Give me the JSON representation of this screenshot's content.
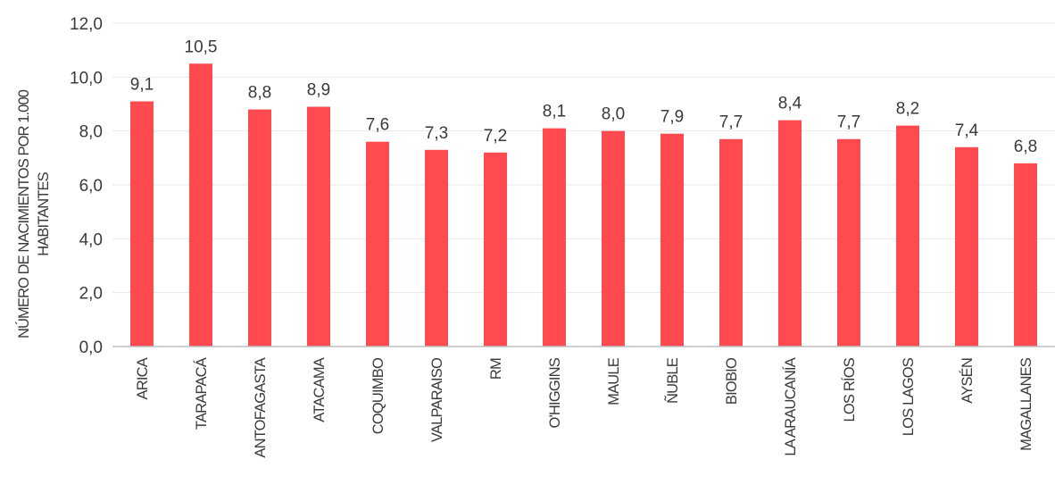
{
  "chart_data": {
    "type": "bar",
    "categories": [
      "ARICA",
      "TARAPACÁ",
      "ANTOFAGASTA",
      "ATACAMA",
      "COQUIMBO",
      "VALPARAISO",
      "RM",
      "O'HIGGINS",
      "MAULE",
      "ÑUBLE",
      "BIOBIO",
      "LA ARAUCANÍA",
      "LOS RÍOS",
      "LOS LAGOS",
      "AYSÉN",
      "MAGALLANES"
    ],
    "values": [
      9.1,
      10.5,
      8.8,
      8.9,
      7.6,
      7.3,
      7.2,
      8.1,
      8.0,
      7.9,
      7.7,
      8.4,
      7.7,
      8.2,
      7.4,
      6.8
    ],
    "data_labels": [
      "9,1",
      "10,5",
      "8,8",
      "8,9",
      "7,6",
      "7,3",
      "7,2",
      "8,1",
      "8,0",
      "7,9",
      "7,7",
      "8,4",
      "7,7",
      "8,2",
      "7,4",
      "6,8"
    ],
    "y_ticks": [
      "0,0",
      "2,0",
      "4,0",
      "6,0",
      "8,0",
      "10,0",
      "12,0"
    ],
    "ylim": [
      0,
      12
    ],
    "ylabel_line1": "NÚMERO DE NACIMIENTOS POR 1.000",
    "ylabel_line2": "HABITANTES",
    "xlabel": "",
    "title": "",
    "grid": true,
    "legend": false,
    "bar_color": "#ff4b4f",
    "grid_color": "#e8e8e8",
    "axis_color": "#bfbfbf"
  }
}
